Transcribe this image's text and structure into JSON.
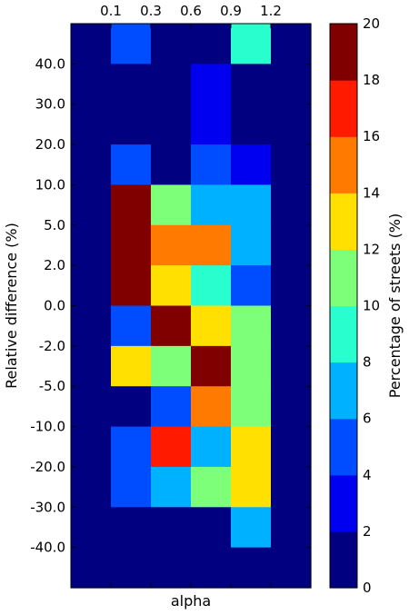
{
  "chart_data": {
    "type": "heatmap",
    "xlabel": "alpha",
    "ylabel": "Relative difference (%)",
    "x_tick_labels": [
      "0.1",
      "0.3",
      "0.6",
      "0.9",
      "1.2"
    ],
    "y_tick_labels": [
      "40.0",
      "30.0",
      "20.0",
      "10.0",
      "5.0",
      "2.0",
      "0.0",
      "-2.0",
      "-5.0",
      "-10.0",
      "-20.0",
      "-30.0",
      "-40.0"
    ],
    "columns": 6,
    "rows": 14,
    "values": [
      [
        0,
        5,
        0,
        0,
        9,
        0
      ],
      [
        0,
        0,
        0,
        3,
        0,
        0
      ],
      [
        0,
        0,
        0,
        3,
        0,
        0
      ],
      [
        0,
        5,
        0,
        5,
        3,
        0
      ],
      [
        0,
        19,
        11,
        7,
        7,
        0
      ],
      [
        0,
        19,
        15,
        15,
        7,
        0
      ],
      [
        0,
        19,
        13,
        9,
        5,
        0
      ],
      [
        0,
        5,
        19,
        13,
        11,
        0
      ],
      [
        0,
        13,
        11,
        19,
        11,
        0
      ],
      [
        0,
        0,
        5,
        15,
        11,
        0
      ],
      [
        0,
        5,
        17,
        7,
        13,
        0
      ],
      [
        0,
        5,
        7,
        11,
        13,
        0
      ],
      [
        0,
        0,
        0,
        0,
        7,
        0
      ],
      [
        0,
        0,
        0,
        0,
        0,
        0
      ]
    ],
    "colorbar": {
      "label": "Percentage of streets (%)",
      "min": 0,
      "max": 20,
      "tick_labels": [
        "0",
        "2",
        "4",
        "6",
        "8",
        "10",
        "12",
        "14",
        "16",
        "18",
        "20"
      ],
      "colors": [
        "#000080",
        "#0000f1",
        "#004dff",
        "#00b1ff",
        "#29ffce",
        "#7dff7a",
        "#ceff29",
        "#ffc400",
        "#ff6800",
        "#f10800",
        "#800000"
      ]
    }
  }
}
